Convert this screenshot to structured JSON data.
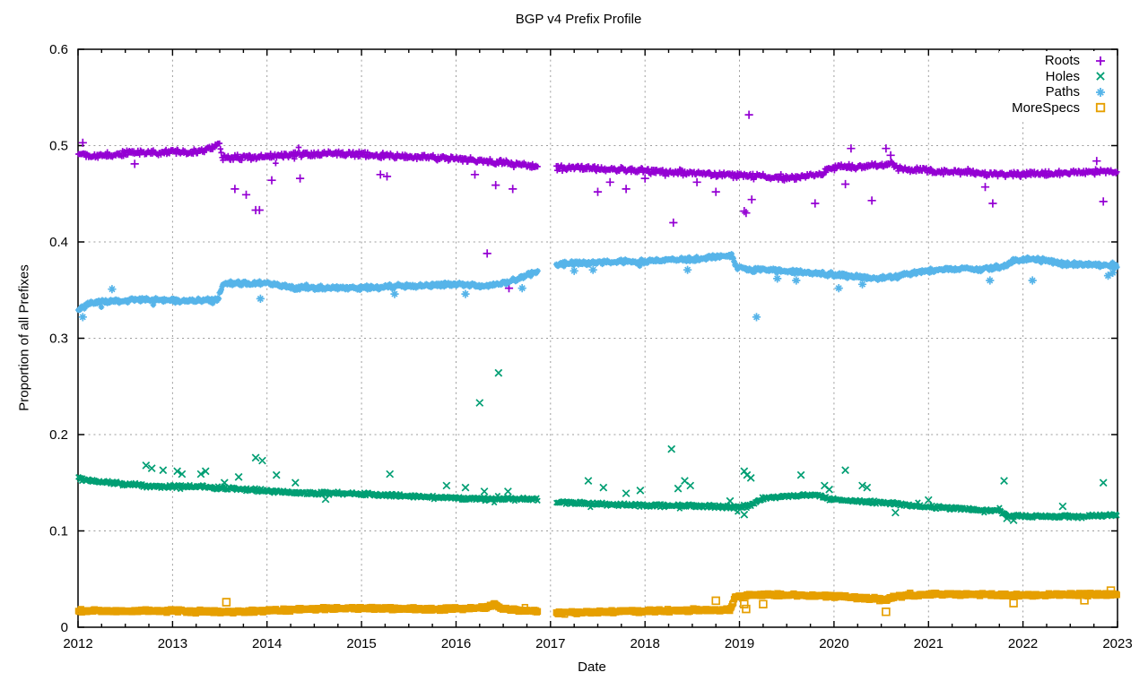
{
  "chart_data": {
    "type": "scatter",
    "title": "BGP v4 Prefix Profile",
    "xlabel": "Date",
    "ylabel": "Proportion of all Prefixes",
    "xlim": [
      2012,
      2023
    ],
    "ylim": [
      0,
      0.6
    ],
    "grid": true,
    "legend_position": "top-right-inside",
    "x_minor_tick_interval": 0.25,
    "data_gap_x": [
      2016.87,
      2017.055
    ],
    "x_ticks": [
      [
        2012,
        "2012"
      ],
      [
        2013,
        "2013"
      ],
      [
        2014,
        "2014"
      ],
      [
        2015,
        "2015"
      ],
      [
        2016,
        "2016"
      ],
      [
        2017,
        "2017"
      ],
      [
        2018,
        "2018"
      ],
      [
        2019,
        "2019"
      ],
      [
        2020,
        "2020"
      ],
      [
        2021,
        "2021"
      ],
      [
        2022,
        "2022"
      ],
      [
        2023,
        "2023"
      ]
    ],
    "y_ticks": [
      [
        0,
        "0"
      ],
      [
        0.1,
        "0.1"
      ],
      [
        0.2,
        "0.2"
      ],
      [
        0.3,
        "0.3"
      ],
      [
        0.4,
        "0.4"
      ],
      [
        0.5,
        "0.5"
      ],
      [
        0.6,
        "0.6"
      ]
    ],
    "series": [
      {
        "name": "Roots",
        "marker": "plus",
        "color": "#9400D3",
        "band_halfwidth": 0.0035,
        "trend": [
          [
            2012.0,
            0.492
          ],
          [
            2012.15,
            0.489
          ],
          [
            2012.3,
            0.49
          ],
          [
            2012.5,
            0.492
          ],
          [
            2012.7,
            0.493
          ],
          [
            2012.85,
            0.492
          ],
          [
            2013.0,
            0.494
          ],
          [
            2013.15,
            0.493
          ],
          [
            2013.3,
            0.495
          ],
          [
            2013.42,
            0.498
          ],
          [
            2013.49,
            0.503
          ],
          [
            2013.53,
            0.487
          ],
          [
            2013.7,
            0.488
          ],
          [
            2013.9,
            0.488
          ],
          [
            2014.1,
            0.49
          ],
          [
            2014.4,
            0.491
          ],
          [
            2014.7,
            0.492
          ],
          [
            2015.0,
            0.491
          ],
          [
            2015.3,
            0.489
          ],
          [
            2015.7,
            0.488
          ],
          [
            2016.0,
            0.487
          ],
          [
            2016.3,
            0.484
          ],
          [
            2016.6,
            0.481
          ],
          [
            2016.87,
            0.478
          ],
          [
            2017.06,
            0.477
          ],
          [
            2017.5,
            0.476
          ],
          [
            2018.0,
            0.474
          ],
          [
            2018.4,
            0.472
          ],
          [
            2018.8,
            0.47
          ],
          [
            2019.0,
            0.469
          ],
          [
            2019.2,
            0.468
          ],
          [
            2019.45,
            0.466
          ],
          [
            2019.6,
            0.467
          ],
          [
            2019.85,
            0.47
          ],
          [
            2019.95,
            0.477
          ],
          [
            2020.3,
            0.478
          ],
          [
            2020.55,
            0.479
          ],
          [
            2020.62,
            0.482
          ],
          [
            2020.68,
            0.476
          ],
          [
            2021.0,
            0.474
          ],
          [
            2021.4,
            0.472
          ],
          [
            2021.8,
            0.47
          ],
          [
            2022.2,
            0.471
          ],
          [
            2022.6,
            0.472
          ],
          [
            2023.0,
            0.474
          ]
        ],
        "outliers": [
          [
            2012.05,
            0.503
          ],
          [
            2012.6,
            0.481
          ],
          [
            2013.66,
            0.455
          ],
          [
            2013.78,
            0.449
          ],
          [
            2013.88,
            0.433
          ],
          [
            2013.92,
            0.433
          ],
          [
            2014.05,
            0.464
          ],
          [
            2014.35,
            0.466
          ],
          [
            2015.2,
            0.47
          ],
          [
            2015.27,
            0.468
          ],
          [
            2016.2,
            0.47
          ],
          [
            2016.33,
            0.388
          ],
          [
            2016.42,
            0.459
          ],
          [
            2016.56,
            0.352
          ],
          [
            2016.6,
            0.455
          ],
          [
            2017.5,
            0.452
          ],
          [
            2017.63,
            0.462
          ],
          [
            2017.8,
            0.455
          ],
          [
            2018.0,
            0.466
          ],
          [
            2018.3,
            0.42
          ],
          [
            2018.55,
            0.462
          ],
          [
            2018.75,
            0.452
          ],
          [
            2019.05,
            0.432
          ],
          [
            2019.07,
            0.43
          ],
          [
            2019.1,
            0.532
          ],
          [
            2019.13,
            0.444
          ],
          [
            2019.8,
            0.44
          ],
          [
            2020.12,
            0.46
          ],
          [
            2020.18,
            0.497
          ],
          [
            2020.4,
            0.443
          ],
          [
            2020.55,
            0.497
          ],
          [
            2020.6,
            0.49
          ],
          [
            2021.6,
            0.457
          ],
          [
            2021.68,
            0.44
          ],
          [
            2022.78,
            0.484
          ],
          [
            2022.85,
            0.442
          ]
        ]
      },
      {
        "name": "Holes",
        "marker": "cross",
        "color": "#009E73",
        "band_halfwidth": 0.0022,
        "trend": [
          [
            2012.0,
            0.154
          ],
          [
            2012.2,
            0.151
          ],
          [
            2012.45,
            0.149
          ],
          [
            2012.7,
            0.147
          ],
          [
            2013.0,
            0.146
          ],
          [
            2013.3,
            0.146
          ],
          [
            2013.6,
            0.144
          ],
          [
            2013.9,
            0.142
          ],
          [
            2014.2,
            0.14
          ],
          [
            2014.5,
            0.139
          ],
          [
            2014.8,
            0.139
          ],
          [
            2015.1,
            0.138
          ],
          [
            2015.5,
            0.136
          ],
          [
            2016.0,
            0.134
          ],
          [
            2016.4,
            0.133
          ],
          [
            2016.87,
            0.133
          ],
          [
            2017.06,
            0.13
          ],
          [
            2017.5,
            0.128
          ],
          [
            2018.0,
            0.1265
          ],
          [
            2018.5,
            0.126
          ],
          [
            2018.95,
            0.1245
          ],
          [
            2019.1,
            0.126
          ],
          [
            2019.25,
            0.134
          ],
          [
            2019.5,
            0.136
          ],
          [
            2019.8,
            0.138
          ],
          [
            2019.95,
            0.133
          ],
          [
            2020.2,
            0.131
          ],
          [
            2020.6,
            0.129
          ],
          [
            2021.0,
            0.125
          ],
          [
            2021.4,
            0.1225
          ],
          [
            2021.75,
            0.121
          ],
          [
            2021.85,
            0.115
          ],
          [
            2022.2,
            0.115
          ],
          [
            2022.6,
            0.115
          ],
          [
            2023.0,
            0.117
          ]
        ],
        "outliers": [
          [
            2012.72,
            0.168
          ],
          [
            2012.78,
            0.165
          ],
          [
            2012.9,
            0.163
          ],
          [
            2013.05,
            0.162
          ],
          [
            2013.1,
            0.159
          ],
          [
            2013.3,
            0.159
          ],
          [
            2013.35,
            0.162
          ],
          [
            2013.55,
            0.15
          ],
          [
            2013.7,
            0.156
          ],
          [
            2013.88,
            0.176
          ],
          [
            2013.95,
            0.173
          ],
          [
            2014.1,
            0.158
          ],
          [
            2014.3,
            0.15
          ],
          [
            2014.62,
            0.133
          ],
          [
            2015.3,
            0.159
          ],
          [
            2015.9,
            0.147
          ],
          [
            2016.1,
            0.145
          ],
          [
            2016.25,
            0.233
          ],
          [
            2016.3,
            0.141
          ],
          [
            2016.45,
            0.264
          ],
          [
            2016.55,
            0.141
          ],
          [
            2017.4,
            0.152
          ],
          [
            2017.56,
            0.145
          ],
          [
            2017.8,
            0.139
          ],
          [
            2017.95,
            0.142
          ],
          [
            2018.28,
            0.185
          ],
          [
            2018.35,
            0.144
          ],
          [
            2018.42,
            0.152
          ],
          [
            2018.48,
            0.147
          ],
          [
            2018.9,
            0.131
          ],
          [
            2019.05,
            0.162
          ],
          [
            2019.08,
            0.158
          ],
          [
            2019.12,
            0.155
          ],
          [
            2019.05,
            0.117
          ],
          [
            2019.65,
            0.158
          ],
          [
            2019.9,
            0.147
          ],
          [
            2019.95,
            0.143
          ],
          [
            2020.12,
            0.163
          ],
          [
            2020.3,
            0.147
          ],
          [
            2020.35,
            0.145
          ],
          [
            2020.65,
            0.119
          ],
          [
            2021.0,
            0.132
          ],
          [
            2021.8,
            0.152
          ],
          [
            2021.83,
            0.113
          ],
          [
            2021.9,
            0.111
          ],
          [
            2022.42,
            0.1255
          ],
          [
            2022.85,
            0.15
          ]
        ]
      },
      {
        "name": "Paths",
        "marker": "asterisk",
        "color": "#56B4E9",
        "band_halfwidth": 0.0028,
        "trend": [
          [
            2012.0,
            0.329
          ],
          [
            2012.05,
            0.332
          ],
          [
            2012.15,
            0.337
          ],
          [
            2012.4,
            0.339
          ],
          [
            2012.7,
            0.34
          ],
          [
            2013.0,
            0.339
          ],
          [
            2013.25,
            0.339
          ],
          [
            2013.48,
            0.34
          ],
          [
            2013.53,
            0.357
          ],
          [
            2013.8,
            0.357
          ],
          [
            2014.0,
            0.357
          ],
          [
            2014.15,
            0.354
          ],
          [
            2014.4,
            0.352
          ],
          [
            2014.7,
            0.352
          ],
          [
            2015.0,
            0.352
          ],
          [
            2015.4,
            0.354
          ],
          [
            2015.8,
            0.355
          ],
          [
            2016.1,
            0.356
          ],
          [
            2016.25,
            0.354
          ],
          [
            2016.5,
            0.357
          ],
          [
            2016.65,
            0.362
          ],
          [
            2016.75,
            0.366
          ],
          [
            2016.87,
            0.369
          ],
          [
            2017.06,
            0.377
          ],
          [
            2017.4,
            0.378
          ],
          [
            2018.0,
            0.38
          ],
          [
            2018.5,
            0.382
          ],
          [
            2018.8,
            0.385
          ],
          [
            2018.92,
            0.386
          ],
          [
            2018.96,
            0.374
          ],
          [
            2019.1,
            0.371
          ],
          [
            2019.3,
            0.371
          ],
          [
            2019.7,
            0.368
          ],
          [
            2020.0,
            0.366
          ],
          [
            2020.4,
            0.362
          ],
          [
            2020.65,
            0.364
          ],
          [
            2020.9,
            0.369
          ],
          [
            2021.2,
            0.372
          ],
          [
            2021.6,
            0.372
          ],
          [
            2021.8,
            0.374
          ],
          [
            2021.88,
            0.38
          ],
          [
            2022.1,
            0.382
          ],
          [
            2022.25,
            0.381
          ],
          [
            2022.4,
            0.377
          ],
          [
            2022.7,
            0.376
          ],
          [
            2023.0,
            0.375
          ]
        ],
        "outliers": [
          [
            2012.36,
            0.351
          ],
          [
            2012.05,
            0.322
          ],
          [
            2013.93,
            0.341
          ],
          [
            2015.35,
            0.346
          ],
          [
            2016.1,
            0.346
          ],
          [
            2016.7,
            0.352
          ],
          [
            2017.25,
            0.37
          ],
          [
            2017.45,
            0.371
          ],
          [
            2018.45,
            0.371
          ],
          [
            2019.18,
            0.322
          ],
          [
            2019.4,
            0.362
          ],
          [
            2019.6,
            0.36
          ],
          [
            2020.05,
            0.352
          ],
          [
            2020.3,
            0.356
          ],
          [
            2021.65,
            0.36
          ],
          [
            2022.1,
            0.36
          ],
          [
            2022.9,
            0.365
          ],
          [
            2022.95,
            0.368
          ]
        ]
      },
      {
        "name": "MoreSpecs",
        "marker": "square",
        "color": "#E69F00",
        "band_halfwidth": 0.0018,
        "trend": [
          [
            2012.0,
            0.017
          ],
          [
            2012.5,
            0.017
          ],
          [
            2013.0,
            0.017
          ],
          [
            2013.5,
            0.016
          ],
          [
            2014.0,
            0.017
          ],
          [
            2014.5,
            0.019
          ],
          [
            2015.0,
            0.02
          ],
          [
            2015.5,
            0.019
          ],
          [
            2016.0,
            0.019
          ],
          [
            2016.32,
            0.02
          ],
          [
            2016.4,
            0.024
          ],
          [
            2016.5,
            0.019
          ],
          [
            2016.87,
            0.016
          ],
          [
            2017.06,
            0.015
          ],
          [
            2017.6,
            0.016
          ],
          [
            2018.2,
            0.017
          ],
          [
            2018.9,
            0.018
          ],
          [
            2018.96,
            0.032
          ],
          [
            2019.3,
            0.034
          ],
          [
            2019.7,
            0.033
          ],
          [
            2020.0,
            0.032
          ],
          [
            2020.35,
            0.03
          ],
          [
            2020.55,
            0.028
          ],
          [
            2020.65,
            0.032
          ],
          [
            2021.0,
            0.034
          ],
          [
            2021.5,
            0.034
          ],
          [
            2022.0,
            0.033
          ],
          [
            2022.5,
            0.034
          ],
          [
            2023.0,
            0.034
          ]
        ],
        "outliers": [
          [
            2013.57,
            0.026
          ],
          [
            2018.75,
            0.0275
          ],
          [
            2019.05,
            0.024
          ],
          [
            2019.07,
            0.019
          ],
          [
            2019.25,
            0.024
          ],
          [
            2020.55,
            0.016
          ],
          [
            2021.9,
            0.025
          ],
          [
            2022.65,
            0.028
          ],
          [
            2022.93,
            0.038
          ]
        ]
      }
    ]
  }
}
